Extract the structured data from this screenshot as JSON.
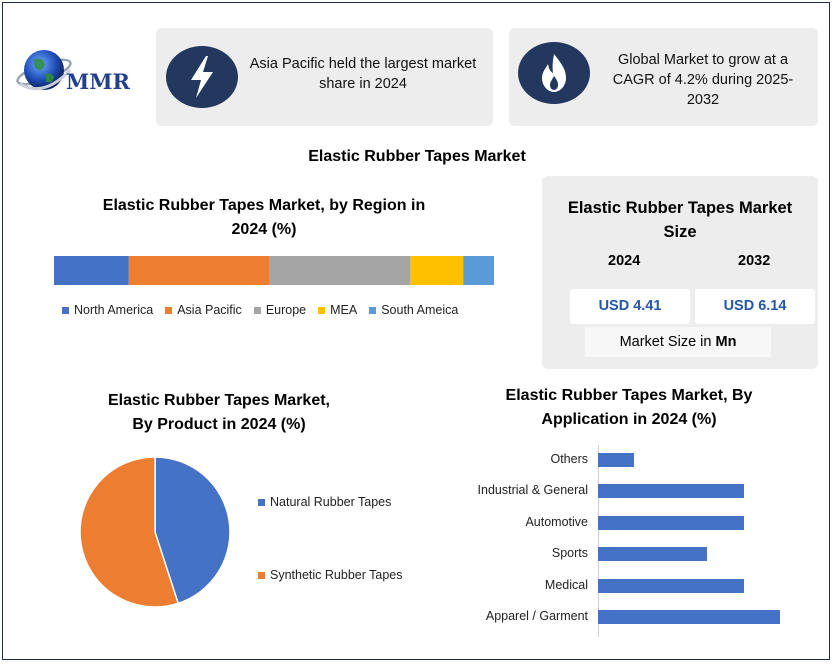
{
  "brand": {
    "name": "MMR",
    "colors": {
      "navy": "#23385e",
      "blue": "#4472c4",
      "orange": "#ed7d31",
      "gray": "#a5a5a5",
      "yellow": "#ffc000",
      "light_blue": "#5b9bd5"
    }
  },
  "highlights": [
    {
      "icon": "lightning-bolt-icon",
      "text_line1": "Asia Pacific held the largest market",
      "text_line2": "share in 2024"
    },
    {
      "icon": "flame-icon",
      "text_line1": "Global Market to grow at a",
      "text_line2": "CAGR of 4.2% during 2025-",
      "text_line3": "2032"
    }
  ],
  "main_title": "Elastic Rubber Tapes Market",
  "market_size": {
    "title_line1": "Elastic Rubber Tapes Market",
    "title_line2": "Size",
    "year_a": "2024",
    "year_b": "2032",
    "value_a": "USD 4.41",
    "value_b": "USD 6.14",
    "unit_prefix": "Market Size in ",
    "unit_bold": "Mn"
  },
  "chart_data": [
    {
      "type": "bar",
      "orientation": "horizontal-stacked",
      "title": "Elastic Rubber Tapes Market, by Region in 2024 (%)",
      "title_line1": "Elastic Rubber Tapes Market, by Region in",
      "title_line2": "2024 (%)",
      "categories": [
        "North America",
        "Asia Pacific",
        "Europe",
        "MEA",
        "South Ameica"
      ],
      "values": [
        17,
        32,
        32,
        12,
        7
      ],
      "colors": [
        "#4472c4",
        "#ed7d31",
        "#a5a5a5",
        "#ffc000",
        "#5b9bd5"
      ],
      "legend_position": "bottom"
    },
    {
      "type": "pie",
      "title": "Elastic Rubber Tapes Market, By Product in 2024 (%)",
      "title_line1": "Elastic Rubber Tapes Market,",
      "title_line2": "By Product in 2024 (%)",
      "categories": [
        "Natural Rubber Tapes",
        "Synthetic Rubber Tapes"
      ],
      "values": [
        45,
        55
      ],
      "colors": [
        "#4472c4",
        "#ed7d31"
      ],
      "legend_position": "right"
    },
    {
      "type": "bar",
      "orientation": "horizontal",
      "title": "Elastic Rubber Tapes Market, By Application in 2024 (%)",
      "title_line1": "Elastic Rubber Tapes Market, By",
      "title_line2": "Application in 2024 (%)",
      "categories": [
        "Others",
        "Industrial & General",
        "Automotive",
        "Sports",
        "Medical",
        "Apparel / Garment"
      ],
      "values": [
        5,
        20,
        20,
        15,
        20,
        25
      ],
      "xlim": [
        0,
        25
      ],
      "color": "#4472c4",
      "grid": false
    }
  ]
}
